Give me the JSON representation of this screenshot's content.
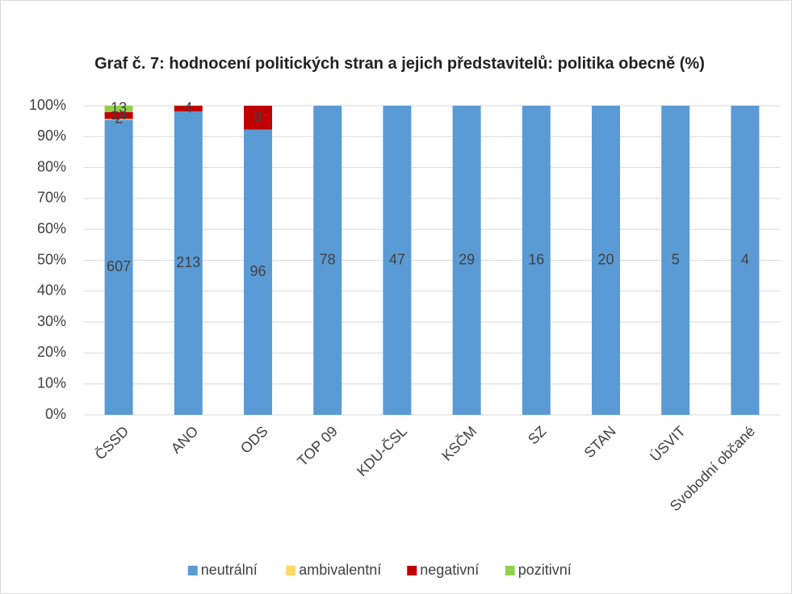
{
  "chart_data": {
    "type": "bar",
    "stacked": "percent",
    "title": "Graf č. 7: hodnocení politických stran a jejich představitelů: politika obecně (%)",
    "categories": [
      "ČSSD",
      "ANO",
      "ODS",
      "TOP 09",
      "KDU-ČSL",
      "KSČM",
      "SZ",
      "STAN",
      "ÚSVIT",
      "Svobodní občané"
    ],
    "series": [
      {
        "name": "neutrální",
        "color": "#5b9bd5",
        "values": [
          607,
          213,
          96,
          78,
          47,
          29,
          16,
          20,
          5,
          4
        ]
      },
      {
        "name": "ambivalentní",
        "color": "#ffd966",
        "values": [
          2,
          null,
          null,
          null,
          null,
          null,
          null,
          null,
          null,
          null
        ]
      },
      {
        "name": "negativní",
        "color": "#c00000",
        "values": [
          14,
          4,
          8,
          null,
          null,
          null,
          null,
          null,
          null,
          null
        ]
      },
      {
        "name": "pozitivní",
        "color": "#92d050",
        "values": [
          13,
          null,
          null,
          null,
          null,
          null,
          null,
          null,
          null,
          null
        ]
      }
    ],
    "ylim": [
      0,
      100
    ],
    "yticks": [
      {
        "value": 0,
        "label": "0%"
      },
      {
        "value": 10,
        "label": "10%"
      },
      {
        "value": 20,
        "label": "20%"
      },
      {
        "value": 30,
        "label": "30%"
      },
      {
        "value": 40,
        "label": "40%"
      },
      {
        "value": 50,
        "label": "50%"
      },
      {
        "value": 60,
        "label": "60%"
      },
      {
        "value": 70,
        "label": "70%"
      },
      {
        "value": 80,
        "label": "80%"
      },
      {
        "value": 90,
        "label": "90%"
      },
      {
        "value": 100,
        "label": "100%"
      }
    ],
    "grid": true,
    "legend": "bottom"
  }
}
